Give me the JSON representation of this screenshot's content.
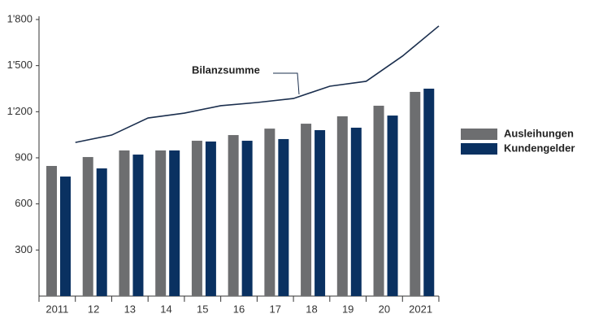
{
  "chart_data": {
    "type": "bar",
    "annotation": "Bilanzsumme",
    "categories": [
      "2011",
      "12",
      "13",
      "14",
      "15",
      "16",
      "17",
      "18",
      "19",
      "20",
      "2021"
    ],
    "series": [
      {
        "name": "Ausleihungen",
        "color": "#6d6e70",
        "values": [
          847,
          905,
          948,
          948,
          1011,
          1048,
          1090,
          1122,
          1170,
          1239,
          1329
        ]
      },
      {
        "name": "Kundengelder",
        "color": "#0a3161",
        "values": [
          778,
          831,
          921,
          948,
          1006,
          1011,
          1022,
          1080,
          1096,
          1175,
          1350
        ]
      },
      {
        "name": "Bilanzsumme",
        "type": "line",
        "color": "#1b2f4e",
        "values": [
          1000,
          1048,
          1159,
          1191,
          1239,
          1260,
          1286,
          1366,
          1398,
          1562,
          1758
        ]
      }
    ],
    "ylim": [
      0,
      1800
    ],
    "yticks": [
      300,
      600,
      900,
      {
        "value": 1200,
        "label": "1'200"
      },
      {
        "value": 1500,
        "label": "1'500"
      },
      {
        "value": 1800,
        "label": "1'800"
      }
    ],
    "legend": "right"
  }
}
